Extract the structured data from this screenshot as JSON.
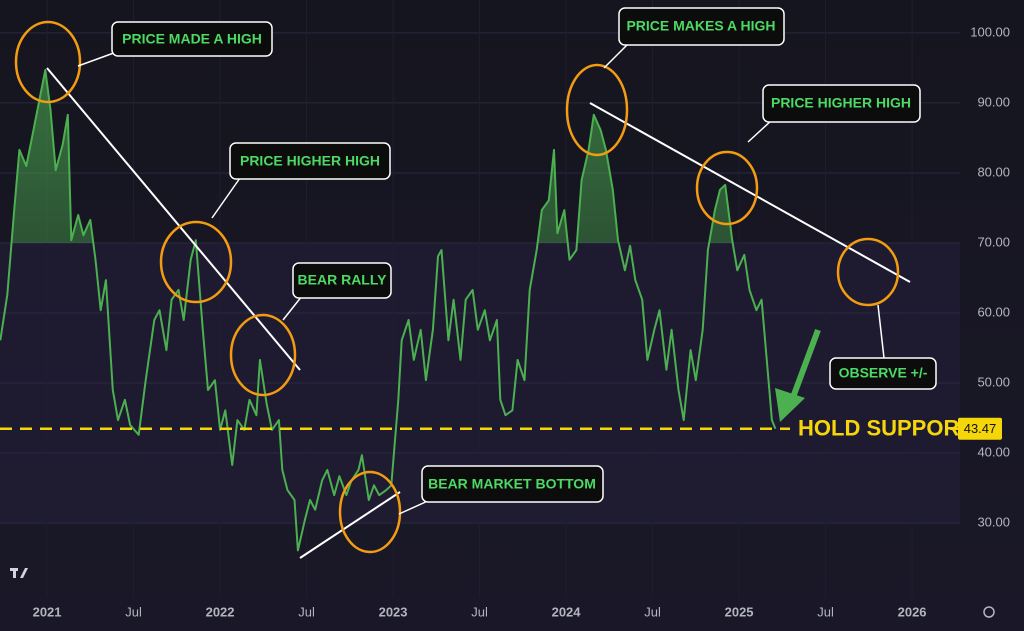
{
  "chart_data": {
    "type": "line",
    "x": [
      2020.73,
      2020.77,
      2020.81,
      2020.84,
      2020.88,
      2020.91,
      2020.95,
      2020.99,
      2021.02,
      2021.05,
      2021.09,
      2021.12,
      2021.14,
      2021.18,
      2021.21,
      2021.25,
      2021.28,
      2021.31,
      2021.34,
      2021.38,
      2021.41,
      2021.45,
      2021.48,
      2021.53,
      2021.57,
      2021.62,
      2021.65,
      2021.69,
      2021.72,
      2021.76,
      2021.79,
      2021.83,
      2021.86,
      2021.9,
      2021.93,
      2021.97,
      2022.0,
      2022.03,
      2022.07,
      2022.1,
      2022.14,
      2022.17,
      2022.21,
      2022.23,
      2022.27,
      2022.3,
      2022.34,
      2022.36,
      2022.39,
      2022.43,
      2022.45,
      2022.49,
      2022.52,
      2022.55,
      2022.59,
      2022.62,
      2022.66,
      2022.69,
      2022.73,
      2022.76,
      2022.8,
      2022.82,
      2022.86,
      2022.89,
      2022.92,
      2022.96,
      2022.99,
      2023.03,
      2023.05,
      2023.09,
      2023.12,
      2023.16,
      2023.19,
      2023.23,
      2023.26,
      2023.28,
      2023.32,
      2023.35,
      2023.39,
      2023.42,
      2023.46,
      2023.49,
      2023.53,
      2023.56,
      2023.6,
      2023.62,
      2023.65,
      2023.69,
      2023.72,
      2023.76,
      2023.79,
      2023.83,
      2023.86,
      2023.9,
      2023.93,
      2023.95,
      2023.99,
      2024.02,
      2024.06,
      2024.09,
      2024.13,
      2024.16,
      2024.2,
      2024.23,
      2024.27,
      2024.3,
      2024.34,
      2024.37,
      2024.4,
      2024.44,
      2024.47,
      2024.51,
      2024.54,
      2024.58,
      2024.61,
      2024.65,
      2024.68,
      2024.72,
      2024.75,
      2024.79,
      2024.82,
      2024.86,
      2024.89,
      2024.92,
      2024.96,
      2024.99,
      2025.03,
      2025.06,
      2025.1,
      2025.13,
      2025.17,
      2025.19,
      2025.21
    ],
    "values": [
      56.1,
      62.6,
      74.7,
      83.3,
      81,
      84.7,
      89.7,
      94.7,
      89,
      80.4,
      84,
      88.3,
      70.4,
      74,
      71.1,
      73.3,
      67.6,
      60.4,
      64.7,
      49,
      44.7,
      47.6,
      44,
      42.6,
      50.4,
      59,
      60.4,
      54.7,
      61.9,
      63.3,
      59,
      67.6,
      70.4,
      57.6,
      49,
      50.4,
      43.3,
      46.1,
      38.3,
      44.7,
      43.3,
      47.6,
      45.4,
      53.3,
      46.9,
      43.3,
      44.7,
      37.6,
      34.7,
      33.3,
      26.1,
      30.4,
      33.3,
      31.9,
      36.1,
      37.6,
      34,
      36.7,
      34,
      36.1,
      37.6,
      39.7,
      33.3,
      35.4,
      34,
      34.7,
      35.4,
      47.6,
      56.1,
      59,
      53.3,
      57.6,
      50.4,
      57.6,
      68.1,
      69,
      56.1,
      61.9,
      53.3,
      61.9,
      63.3,
      57.6,
      60.4,
      56.1,
      59,
      47.6,
      45.4,
      46.1,
      53.3,
      50.4,
      63.3,
      69,
      74.7,
      76.1,
      83.3,
      71.4,
      74.7,
      67.6,
      69,
      79,
      83.3,
      88.3,
      86.1,
      83.3,
      77.6,
      70.4,
      66.1,
      69.6,
      64.7,
      61.9,
      53.3,
      57.6,
      60.4,
      51.9,
      57.6,
      49,
      44.7,
      54.7,
      50.4,
      57.6,
      69,
      74.7,
      77.6,
      78.3,
      70.4,
      66.1,
      68.3,
      63.3,
      60.4,
      61.9,
      50.4,
      44.7,
      43.47
    ],
    "color": "#4caf50",
    "xlim": [
      2020.728,
      2026.277
    ],
    "xticks": [
      2021,
      {
        "value": 2021.5,
        "label": "Jul"
      },
      2022,
      {
        "value": 2022.5,
        "label": "Jul"
      },
      2023,
      {
        "value": 2023.5,
        "label": "Jul"
      },
      2024,
      {
        "value": 2024.5,
        "label": "Jul"
      },
      2025,
      {
        "value": 2025.5,
        "label": "Jul"
      },
      2026
    ],
    "ylim": [
      19.3,
      104.7
    ],
    "yticks": [
      {
        "value": 30,
        "label": "30.00"
      },
      {
        "value": 40,
        "label": "40.00"
      },
      {
        "value": 50,
        "label": "50.00"
      },
      {
        "value": 60,
        "label": "60.00"
      },
      {
        "value": 70,
        "label": "70.00"
      },
      {
        "value": 80,
        "label": "80.00"
      },
      {
        "value": 90,
        "label": "90.00"
      },
      {
        "value": 100,
        "label": "100.00"
      }
    ],
    "support": 43.47,
    "support_label": "HOLD SUPPORT",
    "annotations": [
      "PRICE MADE A HIGH",
      "PRICE HIGHER HIGH",
      "BEAR RALLY",
      "BEAR MARKET BOTTOM",
      "PRICE MAKES A HIGH",
      "PRICE HIGHER HIGH",
      "OBSERVE +/-"
    ],
    "grid": true
  }
}
